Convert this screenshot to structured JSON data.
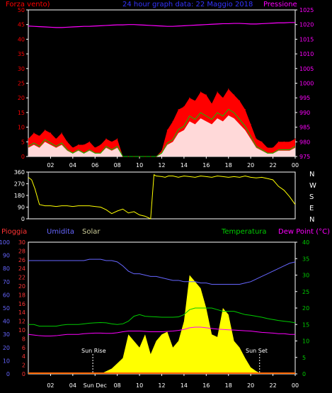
{
  "header": {
    "left": "Forza vento)",
    "center": "24 hour graph data: 22 Maggio 2018",
    "right": "Pressione"
  },
  "colors": {
    "wind_avg": "#00cc00",
    "gust": "#ff0000",
    "wind_fill": "#ffffff",
    "pressure": "#ff00ff",
    "direction": "#ffff00",
    "humidity": "#6666ff",
    "solar": "#ffff00",
    "temperature": "#00cc00",
    "dewpoint": "#ff00ff",
    "rain": "#ff3333",
    "axis": "#ffffff"
  },
  "dir_labels": [
    "N",
    "W",
    "S",
    "E",
    "N"
  ],
  "bottom_labels": {
    "rain": "Pioggia",
    "humidity": "Umidita",
    "solar": "Solar",
    "temperature": "Temperatura",
    "dewpoint": "Dew Point (°C)",
    "sunrise": "Sun Rise",
    "sunset": "Sun Set"
  },
  "x_ticks": [
    "02",
    "04",
    "06",
    "08",
    "10",
    "12",
    "14",
    "16",
    "18",
    "20",
    "22",
    "00"
  ],
  "x_ticks_sun": [
    "02",
    "04",
    "Sun Dec",
    "08",
    "10",
    "12",
    "14",
    "16",
    "18",
    "20",
    "22",
    "00"
  ],
  "chart_data": [
    {
      "type": "line",
      "title": "24 hour graph data: 22 Maggio 2018",
      "x_hours": [
        0,
        0.5,
        1,
        1.5,
        2,
        2.5,
        3,
        3.5,
        4,
        4.5,
        5,
        5.5,
        6,
        6.5,
        7,
        7.5,
        8,
        8.5,
        9,
        9.5,
        10,
        10.5,
        11,
        11.5,
        12,
        12.5,
        13,
        13.5,
        14,
        14.5,
        15,
        15.5,
        16,
        16.5,
        17,
        17.5,
        18,
        18.5,
        19,
        19.5,
        20,
        20.5,
        21,
        21.5,
        22,
        22.5,
        23,
        23.5,
        24
      ],
      "ylim_left": [
        0,
        50
      ],
      "ylim_right": [
        975,
        1025
      ],
      "yticks_left": [
        0,
        5,
        10,
        15,
        20,
        25,
        30,
        35,
        40,
        45,
        50
      ],
      "yticks_right": [
        975,
        980,
        985,
        990,
        995,
        1000,
        1005,
        1010,
        1015,
        1020,
        1025
      ],
      "series": [
        {
          "name": "Forza vento)",
          "axis": "left",
          "values": [
            3,
            4,
            3,
            5,
            4,
            3,
            4,
            2,
            1,
            2,
            1,
            2,
            1,
            1,
            3,
            2,
            3,
            0,
            0,
            0,
            0,
            0,
            0,
            0,
            1,
            4,
            5,
            8,
            9,
            12,
            11,
            13,
            12,
            11,
            13,
            12,
            14,
            13,
            11,
            9,
            6,
            3,
            2,
            1,
            1,
            2,
            2,
            2,
            3
          ]
        },
        {
          "axis": "left",
          "values": [
            6,
            8,
            7,
            9,
            8,
            6,
            8,
            5,
            3,
            4,
            4,
            5,
            3,
            4,
            6,
            5,
            6,
            0,
            0,
            0,
            0,
            0,
            0,
            0,
            2,
            9,
            12,
            16,
            17,
            20,
            19,
            22,
            21,
            18,
            22,
            20,
            23,
            21,
            19,
            16,
            11,
            6,
            5,
            3,
            3,
            5,
            5,
            5,
            6
          ]
        },
        {
          "name": "Pressione",
          "axis": "right",
          "values": [
            1019.5,
            1019.4,
            1019.3,
            1019.2,
            1019.1,
            1019.0,
            1019.0,
            1019.1,
            1019.2,
            1019.3,
            1019.4,
            1019.4,
            1019.5,
            1019.6,
            1019.7,
            1019.8,
            1019.9,
            1019.9,
            1020.0,
            1020.0,
            1019.9,
            1019.8,
            1019.7,
            1019.6,
            1019.5,
            1019.4,
            1019.4,
            1019.5,
            1019.6,
            1019.7,
            1019.8,
            1019.9,
            1020.0,
            1020.1,
            1020.2,
            1020.3,
            1020.3,
            1020.4,
            1020.4,
            1020.3,
            1020.2,
            1020.2,
            1020.3,
            1020.4,
            1020.5,
            1020.6,
            1020.6,
            1020.7,
            1020.7
          ]
        }
      ]
    },
    {
      "type": "line",
      "ylim": [
        0,
        360
      ],
      "yticks": [
        0,
        90,
        180,
        270,
        360
      ],
      "series": [
        {
          "x_hours": [
            0,
            0.3,
            0.6,
            1,
            1.5,
            2,
            2.5,
            3,
            3.5,
            4,
            4.5,
            5,
            5.5,
            6,
            6.5,
            7,
            7.5,
            8,
            8.5,
            9,
            9.5,
            10,
            10.5,
            11,
            11.3,
            11.5,
            12,
            12.3,
            12.6,
            13,
            13.5,
            14,
            14.5,
            15,
            15.5,
            16,
            16.5,
            17,
            17.5,
            18,
            18.5,
            19,
            19.5,
            20,
            20.5,
            21,
            21.5,
            22,
            22.5,
            23,
            23.5,
            24
          ],
          "values": [
            320,
            300,
            230,
            110,
            100,
            100,
            95,
            100,
            100,
            95,
            100,
            100,
            100,
            95,
            90,
            70,
            40,
            60,
            75,
            45,
            55,
            30,
            20,
            0,
            340,
            330,
            325,
            320,
            330,
            330,
            320,
            330,
            325,
            320,
            330,
            325,
            320,
            330,
            325,
            320,
            325,
            320,
            330,
            320,
            315,
            320,
            310,
            300,
            250,
            220,
            170,
            110
          ]
        }
      ]
    },
    {
      "type": "area",
      "x_hours": [
        0,
        0.5,
        1,
        1.5,
        2,
        2.5,
        3,
        3.5,
        4,
        4.5,
        5,
        5.5,
        6,
        6.5,
        7,
        7.5,
        8,
        8.5,
        9,
        9.5,
        10,
        10.5,
        11,
        11.5,
        12,
        12.5,
        13,
        13.5,
        14,
        14.5,
        15,
        15.5,
        16,
        16.5,
        17,
        17.5,
        18,
        18.5,
        19,
        19.5,
        20,
        20.5,
        21,
        21.5,
        22,
        22.5,
        23,
        23.5,
        24
      ],
      "ylim_hum": [
        0,
        100
      ],
      "yticks_hum": [
        0,
        10,
        20,
        30,
        40,
        50,
        60,
        70,
        80,
        90,
        100
      ],
      "ylim_rain": [
        0,
        30
      ],
      "yticks_rain": [
        0,
        2,
        4,
        6,
        8,
        10,
        12,
        14,
        16,
        18,
        20,
        22,
        24,
        26,
        28,
        30
      ],
      "ylim_temp": [
        0,
        40
      ],
      "yticks_temp": [
        0,
        5,
        10,
        15,
        20,
        25,
        30,
        35,
        40
      ],
      "series": [
        {
          "name": "Umidita",
          "axis": "hum",
          "values": [
            86,
            86,
            86,
            86,
            86,
            86,
            86,
            86,
            86,
            86,
            86,
            87,
            87,
            87,
            86,
            86,
            85,
            82,
            78,
            76,
            76,
            75,
            74,
            74,
            73,
            72,
            71,
            71,
            70,
            70,
            70,
            69,
            69,
            68,
            68,
            68,
            68,
            68,
            68,
            69,
            70,
            72,
            74,
            76,
            78,
            80,
            82,
            84,
            85
          ]
        },
        {
          "name": "Temperatura",
          "axis": "temp",
          "values": [
            15,
            15,
            14.5,
            14.5,
            14.5,
            14.5,
            14.8,
            15,
            15,
            15,
            15.2,
            15.4,
            15.5,
            15.6,
            15.5,
            15.2,
            15,
            15.2,
            16,
            17.5,
            18,
            17.5,
            17.4,
            17.3,
            17.2,
            17.2,
            17.2,
            17.3,
            18,
            19.5,
            20,
            20,
            20,
            20,
            19.5,
            19,
            19,
            19,
            18.5,
            18,
            17.8,
            17.5,
            17.2,
            16.8,
            16.5,
            16.2,
            16,
            15.8,
            15.5
          ]
        },
        {
          "name": "Dew Point (°C)",
          "axis": "temp",
          "values": [
            12,
            11.8,
            11.6,
            11.5,
            11.5,
            11.6,
            11.8,
            12,
            12,
            12,
            12.2,
            12.3,
            12.4,
            12.4,
            12.3,
            12.3,
            12.5,
            12.8,
            13,
            13,
            13,
            12.9,
            12.8,
            12.8,
            12.8,
            12.9,
            13,
            13.2,
            13.5,
            14,
            14.2,
            14.2,
            14,
            13.8,
            13.6,
            13.5,
            13.4,
            13.3,
            13.2,
            13.1,
            13,
            12.8,
            12.6,
            12.5,
            12.4,
            12.2,
            12.2,
            12,
            12
          ]
        },
        {
          "name": "Solar",
          "axis": "hum",
          "values": [
            0,
            0,
            0,
            0,
            0,
            0,
            0,
            0,
            0,
            0,
            0,
            0,
            0,
            0,
            2,
            4,
            8,
            12,
            30,
            25,
            20,
            30,
            15,
            25,
            30,
            32,
            20,
            25,
            40,
            75,
            70,
            65,
            50,
            30,
            28,
            50,
            45,
            25,
            20,
            12,
            5,
            2,
            0,
            0,
            0,
            0,
            0,
            0,
            0
          ]
        },
        {
          "name": "Pioggia",
          "axis": "rain",
          "values": [
            0,
            0,
            0,
            0,
            0,
            0,
            0,
            0,
            0,
            0,
            0,
            0,
            0,
            0,
            0,
            0,
            0,
            0,
            0,
            0,
            0,
            0,
            0,
            0,
            0,
            0,
            0,
            0,
            0,
            0,
            0,
            0,
            0,
            0,
            0,
            0,
            0,
            0,
            0,
            0,
            0,
            0,
            0,
            0,
            0,
            0,
            0,
            0,
            0
          ]
        }
      ]
    }
  ]
}
